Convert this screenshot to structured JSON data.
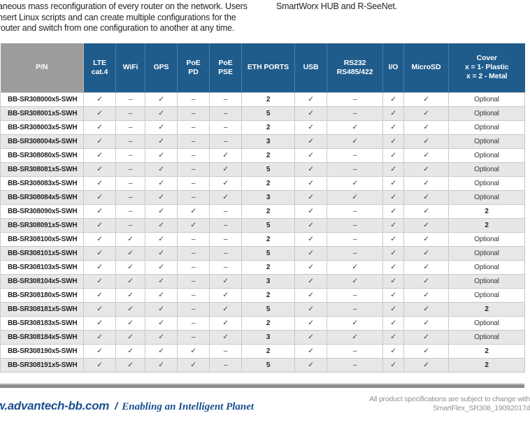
{
  "intro": {
    "left_lines": [
      "aneous mass reconfiguration of every router on the network. Users",
      "nsert Linux scripts and can create multiple configurations for the",
      "router and switch from one configuration to another at any time."
    ],
    "right_line": "SmartWorx HUB and R-SeeNet."
  },
  "table": {
    "columns": [
      "P/N",
      "LTE\ncat.4",
      "WiFi",
      "GPS",
      "PoE\nPD",
      "PoE\nPSE",
      "ETH PORTS",
      "USB",
      "RS232\nRS485/422",
      "I/O",
      "MicroSD",
      "Cover\nx = 1- Plastic\nx = 2 - Metal"
    ],
    "rows": [
      {
        "pn": "BB-SR308000x5-SWH",
        "values": [
          "✓",
          "–",
          "✓",
          "–",
          "–",
          "2",
          "✓",
          "–",
          "✓",
          "✓",
          "Optional"
        ]
      },
      {
        "pn": "BB-SR308001x5-SWH",
        "values": [
          "✓",
          "–",
          "✓",
          "–",
          "–",
          "5",
          "✓",
          "–",
          "✓",
          "✓",
          "Optional"
        ]
      },
      {
        "pn": "BB-SR308003x5-SWH",
        "values": [
          "✓",
          "–",
          "✓",
          "–",
          "–",
          "2",
          "✓",
          "✓",
          "✓",
          "✓",
          "Optional"
        ]
      },
      {
        "pn": "BB-SR308004x5-SWH",
        "values": [
          "✓",
          "–",
          "✓",
          "–",
          "–",
          "3",
          "✓",
          "✓",
          "✓",
          "✓",
          "Optional"
        ]
      },
      {
        "pn": "BB-SR308080x5-SWH",
        "values": [
          "✓",
          "–",
          "✓",
          "–",
          "✓",
          "2",
          "✓",
          "–",
          "✓",
          "✓",
          "Optional"
        ]
      },
      {
        "pn": "BB-SR308081x5-SWH",
        "values": [
          "✓",
          "–",
          "✓",
          "–",
          "✓",
          "5",
          "✓",
          "–",
          "✓",
          "✓",
          "Optional"
        ]
      },
      {
        "pn": "BB-SR308083x5-SWH",
        "values": [
          "✓",
          "–",
          "✓",
          "–",
          "✓",
          "2",
          "✓",
          "✓",
          "✓",
          "✓",
          "Optional"
        ]
      },
      {
        "pn": "BB-SR308084x5-SWH",
        "values": [
          "✓",
          "–",
          "✓",
          "–",
          "✓",
          "3",
          "✓",
          "✓",
          "✓",
          "✓",
          "Optional"
        ]
      },
      {
        "pn": "BB-SR308090x5-SWH",
        "values": [
          "✓",
          "–",
          "✓",
          "✓",
          "–",
          "2",
          "✓",
          "–",
          "✓",
          "✓",
          "2"
        ]
      },
      {
        "pn": "BB-SR308091x5-SWH",
        "values": [
          "✓",
          "–",
          "✓",
          "✓",
          "–",
          "5",
          "✓",
          "–",
          "✓",
          "✓",
          "2"
        ]
      },
      {
        "pn": "BB-SR308100x5-SWH",
        "values": [
          "✓",
          "✓",
          "✓",
          "–",
          "–",
          "2",
          "✓",
          "–",
          "✓",
          "✓",
          "Optional"
        ]
      },
      {
        "pn": "BB-SR308101x5-SWH",
        "values": [
          "✓",
          "✓",
          "✓",
          "–",
          "–",
          "5",
          "✓",
          "–",
          "✓",
          "✓",
          "Optional"
        ]
      },
      {
        "pn": "BB-SR308103x5-SWH",
        "values": [
          "✓",
          "✓",
          "✓",
          "–",
          "–",
          "2",
          "✓",
          "✓",
          "✓",
          "✓",
          "Optional"
        ]
      },
      {
        "pn": "BB-SR308104x5-SWH",
        "values": [
          "✓",
          "✓",
          "✓",
          "–",
          "✓",
          "3",
          "✓",
          "✓",
          "✓",
          "✓",
          "Optional"
        ]
      },
      {
        "pn": "BB-SR308180x5-SWH",
        "values": [
          "✓",
          "✓",
          "✓",
          "–",
          "✓",
          "2",
          "✓",
          "–",
          "✓",
          "✓",
          "Optional"
        ]
      },
      {
        "pn": "BB-SR308181x5-SWH",
        "values": [
          "✓",
          "✓",
          "✓",
          "–",
          "✓",
          "5",
          "✓",
          "–",
          "✓",
          "✓",
          "2"
        ]
      },
      {
        "pn": "BB-SR308183x5-SWH",
        "values": [
          "✓",
          "✓",
          "✓",
          "–",
          "✓",
          "2",
          "✓",
          "✓",
          "✓",
          "✓",
          "Optional"
        ]
      },
      {
        "pn": "BB-SR308184x5-SWH",
        "values": [
          "✓",
          "✓",
          "✓",
          "–",
          "✓",
          "3",
          "✓",
          "✓",
          "✓",
          "✓",
          "Optional"
        ]
      },
      {
        "pn": "BB-SR308190x5-SWH",
        "values": [
          "✓",
          "✓",
          "✓",
          "✓",
          "–",
          "2",
          "✓",
          "–",
          "✓",
          "✓",
          "2"
        ]
      },
      {
        "pn": "BB-SR308191x5-SWH",
        "values": [
          "✓",
          "✓",
          "✓",
          "✓",
          "–",
          "5",
          "✓",
          "–",
          "✓",
          "✓",
          "2"
        ]
      }
    ]
  },
  "footer": {
    "site": "w.advantech-bb.com",
    "slash": "/",
    "tagline": "Enabling an Intelligent Planet",
    "note_line1": "All product specifications are subject to change with",
    "note_line2": "SmartFlex_SR308_19092017d"
  },
  "colors": {
    "header_blue": "#1f5c8c",
    "header_gray": "#9c9c9c",
    "row_stripe": "#e7e7e7",
    "footer_blue": "#1b4f90",
    "note_gray": "#8e9093"
  }
}
